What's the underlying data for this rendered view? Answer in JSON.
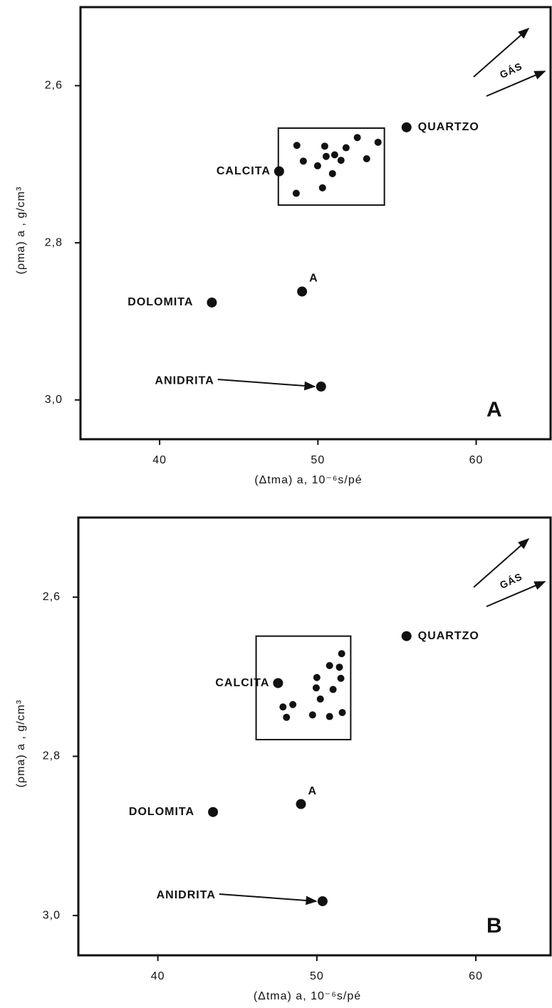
{
  "chart_data": [
    {
      "type": "scatter",
      "panel": "A",
      "annotation": "GÁS",
      "xlabel": "(Δtma) a, 10⁻⁶s/pé",
      "ylabel": "(ρma) a , g/cm³",
      "xlim": [
        35,
        64.7
      ],
      "ylim": [
        3.05,
        2.5
      ],
      "xticks": [
        40,
        50,
        60
      ],
      "yticks": [
        {
          "value": 2.6,
          "label": "2,6"
        },
        {
          "value": 2.8,
          "label": "2,8"
        },
        {
          "value": 3.0,
          "label": "3,0"
        }
      ],
      "color": "#111111",
      "points": [
        {
          "label": "QUARTZO",
          "x": 55.6,
          "y": 2.653
        },
        {
          "label": "CALCITA",
          "x": 47.55,
          "y": 2.709
        },
        {
          "label": "DOLOMITA",
          "x": 43.3,
          "y": 2.876
        },
        {
          "label": "A",
          "x": 49.0,
          "y": 2.862
        },
        {
          "label": "ANIDRITA",
          "x": 50.2,
          "y": 2.983
        }
      ],
      "box": {
        "x": [
          47.5,
          54.2
        ],
        "y": [
          2.654,
          2.752
        ]
      },
      "x": [
        48.67,
        50.43,
        52.49,
        53.8,
        51.78,
        51.06,
        50.52,
        49.08,
        51.46,
        49.98,
        53.08,
        50.92,
        48.63,
        50.29
      ],
      "y": [
        2.676,
        2.677,
        2.666,
        2.672,
        2.679,
        2.688,
        2.69,
        2.696,
        2.695,
        2.702,
        2.693,
        2.712,
        2.737,
        2.73
      ]
    },
    {
      "type": "scatter",
      "panel": "B",
      "annotation": "GÁS",
      "xlabel": "(Δtma) a, 10⁻⁶s/pé",
      "ylabel": "(ρma) a , g/cm³",
      "xlim": [
        35,
        64.7
      ],
      "ylim": [
        3.05,
        2.5
      ],
      "xticks": [
        40,
        50,
        60
      ],
      "yticks": [
        {
          "value": 2.6,
          "label": "2,6"
        },
        {
          "value": 2.8,
          "label": "2,8"
        },
        {
          "value": 3.0,
          "label": "3,0"
        }
      ],
      "color": "#111111",
      "points": [
        {
          "label": "QUARTZO",
          "x": 55.64,
          "y": 2.649
        },
        {
          "label": "CALCITA",
          "x": 47.56,
          "y": 2.708
        },
        {
          "label": "DOLOMITA",
          "x": 43.47,
          "y": 2.87
        },
        {
          "label": "A",
          "x": 49.0,
          "y": 2.86
        },
        {
          "label": "ANIDRITA",
          "x": 50.36,
          "y": 2.982
        }
      ],
      "box": {
        "x": [
          46.18,
          52.13
        ],
        "y": [
          2.649,
          2.779
        ]
      },
      "x": [
        51.56,
        50.8,
        51.42,
        50.0,
        51.51,
        49.96,
        51.02,
        50.22,
        47.87,
        48.49,
        48.09,
        49.73,
        50.8,
        51.6
      ],
      "y": [
        2.671,
        2.686,
        2.688,
        2.701,
        2.702,
        2.714,
        2.716,
        2.728,
        2.738,
        2.735,
        2.751,
        2.748,
        2.75,
        2.745
      ]
    }
  ]
}
